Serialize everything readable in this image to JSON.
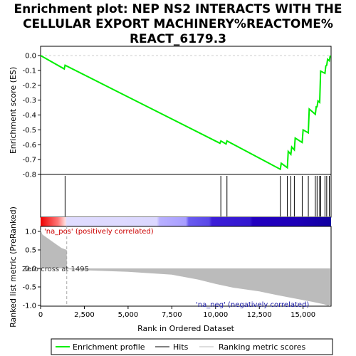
{
  "chart_data": {
    "title_lines": [
      "Enrichment plot: NEP NS2 INTERACTS WITH THE",
      "CELLULAR EXPORT MACHINERY%REACTOME%",
      "REACT_6179.3"
    ],
    "top_panel": {
      "type": "line",
      "ylabel": "Enrichment score (ES)",
      "ylim": [
        -0.8,
        0.05
      ],
      "yticks": [
        0.0,
        -0.1,
        -0.2,
        -0.3,
        -0.4,
        -0.5,
        -0.6,
        -0.7,
        -0.8
      ],
      "ytick_labels": [
        "0.0",
        "-0.1",
        "-0.2",
        "-0.3",
        "-0.4",
        "-0.5",
        "-0.6",
        "-0.7",
        "-0.8"
      ],
      "color": "#00ee00",
      "points": [
        [
          0,
          0.0
        ],
        [
          1350,
          -0.09
        ],
        [
          1400,
          -0.065
        ],
        [
          10250,
          -0.59
        ],
        [
          10300,
          -0.575
        ],
        [
          10600,
          -0.595
        ],
        [
          10650,
          -0.575
        ],
        [
          13700,
          -0.765
        ],
        [
          13750,
          -0.725
        ],
        [
          14100,
          -0.755
        ],
        [
          14150,
          -0.645
        ],
        [
          14300,
          -0.665
        ],
        [
          14350,
          -0.615
        ],
        [
          14500,
          -0.635
        ],
        [
          14550,
          -0.555
        ],
        [
          14950,
          -0.585
        ],
        [
          15000,
          -0.5
        ],
        [
          15300,
          -0.52
        ],
        [
          15350,
          -0.36
        ],
        [
          15700,
          -0.395
        ],
        [
          15750,
          -0.345
        ],
        [
          15800,
          -0.345
        ],
        [
          15850,
          -0.305
        ],
        [
          15950,
          -0.315
        ],
        [
          16000,
          -0.105
        ],
        [
          16250,
          -0.12
        ],
        [
          16300,
          -0.07
        ],
        [
          16350,
          -0.065
        ],
        [
          16400,
          -0.025
        ],
        [
          16500,
          -0.035
        ],
        [
          16550,
          0.0
        ]
      ]
    },
    "hits_panel": {
      "positions": [
        1400,
        10300,
        10650,
        13700,
        14100,
        14300,
        14500,
        14950,
        15300,
        15700,
        15800,
        15950,
        16000,
        16250,
        16350,
        16500
      ]
    },
    "bottom_panel": {
      "type": "area",
      "ylabel": "Ranked list metric (PreRanked)",
      "xlabel": "Rank in Ordered Dataset",
      "ylim": [
        -1.05,
        1.1
      ],
      "yticks": [
        1.0,
        0.5,
        0.0,
        -0.5,
        -1.0
      ],
      "ytick_labels": [
        "1.0",
        "0.5",
        "0.0",
        "-0.5",
        "-1.0"
      ],
      "xlim": [
        0,
        16600
      ],
      "xticks": [
        0,
        2500,
        5000,
        7500,
        10000,
        12500,
        15000
      ],
      "xtick_labels": [
        "0",
        "2,500",
        "5,000",
        "7,500",
        "10,000",
        "12,500",
        "15,000"
      ],
      "metric_points": [
        [
          0,
          1.05
        ],
        [
          100,
          0.92
        ],
        [
          300,
          0.85
        ],
        [
          600,
          0.75
        ],
        [
          900,
          0.65
        ],
        [
          1200,
          0.55
        ],
        [
          1495,
          0.5
        ],
        [
          1500,
          0.0
        ],
        [
          1550,
          -0.02
        ],
        [
          2500,
          -0.05
        ],
        [
          5000,
          -0.09
        ],
        [
          7500,
          -0.17
        ],
        [
          9000,
          -0.3
        ],
        [
          10000,
          -0.42
        ],
        [
          11000,
          -0.52
        ],
        [
          12500,
          -0.62
        ],
        [
          13500,
          -0.72
        ],
        [
          14500,
          -0.81
        ],
        [
          15500,
          -0.9
        ],
        [
          16200,
          -0.97
        ],
        [
          16500,
          -1.02
        ],
        [
          16550,
          -1.02
        ]
      ],
      "fill_color": "#bbbbbb",
      "zero_cross": 1495,
      "annotation_pos": "'na_pos' (positively correlated)",
      "annotation_neg": "'na_neg' (negatively correlated)",
      "annotation_zero": "Zero cross at 1495"
    },
    "legend": [
      {
        "label": "Enrichment profile",
        "color": "#00ee00"
      },
      {
        "label": "Hits",
        "color": "#000000"
      },
      {
        "label": "Ranking metric scores",
        "color": "#bbbbbb"
      }
    ]
  }
}
